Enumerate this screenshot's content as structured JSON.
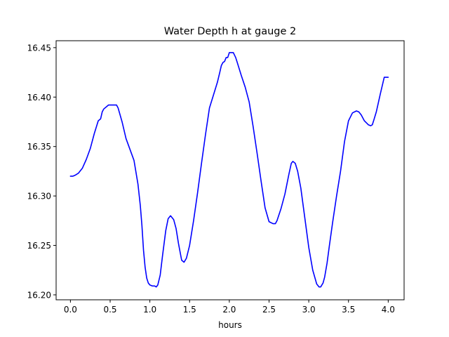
{
  "chart_data": {
    "type": "line",
    "title": "Water Depth h at gauge 2",
    "xlabel": "hours",
    "ylabel": "",
    "xlim": [
      -0.18,
      4.2
    ],
    "ylim": [
      16.195,
      16.457
    ],
    "xticks": [
      0.0,
      0.5,
      1.0,
      1.5,
      2.0,
      2.5,
      3.0,
      3.5,
      4.0
    ],
    "xtick_labels": [
      "0.0",
      "0.5",
      "1.0",
      "1.5",
      "2.0",
      "2.5",
      "3.0",
      "3.5",
      "4.0"
    ],
    "yticks": [
      16.2,
      16.25,
      16.3,
      16.35,
      16.4,
      16.45
    ],
    "ytick_labels": [
      "16.20",
      "16.25",
      "16.30",
      "16.35",
      "16.40",
      "16.45"
    ],
    "grid": false,
    "series": [
      {
        "color": "#0000ff",
        "x": [
          0.0,
          0.03,
          0.06,
          0.1,
          0.15,
          0.2,
          0.25,
          0.3,
          0.35,
          0.38,
          0.4,
          0.42,
          0.45,
          0.48,
          0.5,
          0.55,
          0.58,
          0.6,
          0.65,
          0.7,
          0.75,
          0.8,
          0.85,
          0.88,
          0.9,
          0.92,
          0.94,
          0.96,
          0.98,
          1.0,
          1.03,
          1.06,
          1.08,
          1.1,
          1.13,
          1.16,
          1.2,
          1.23,
          1.26,
          1.3,
          1.33,
          1.36,
          1.4,
          1.43,
          1.46,
          1.5,
          1.55,
          1.6,
          1.65,
          1.7,
          1.75,
          1.8,
          1.85,
          1.88,
          1.9,
          1.92,
          1.94,
          1.96,
          1.98,
          2.0,
          2.02,
          2.05,
          2.08,
          2.1,
          2.15,
          2.2,
          2.25,
          2.3,
          2.35,
          2.4,
          2.45,
          2.5,
          2.55,
          2.58,
          2.6,
          2.65,
          2.7,
          2.75,
          2.78,
          2.8,
          2.83,
          2.86,
          2.9,
          2.95,
          3.0,
          3.05,
          3.1,
          3.13,
          3.15,
          3.18,
          3.2,
          3.23,
          3.26,
          3.3,
          3.35,
          3.4,
          3.45,
          3.5,
          3.55,
          3.6,
          3.63,
          3.66,
          3.7,
          3.75,
          3.78,
          3.8,
          3.82,
          3.85,
          3.9,
          3.95,
          4.0
        ],
        "y": [
          16.32,
          16.32,
          16.321,
          16.323,
          16.328,
          16.337,
          16.348,
          16.363,
          16.376,
          16.378,
          16.385,
          16.388,
          16.39,
          16.392,
          16.392,
          16.392,
          16.392,
          16.389,
          16.375,
          16.358,
          16.347,
          16.336,
          16.312,
          16.29,
          16.27,
          16.245,
          16.228,
          16.217,
          16.212,
          16.21,
          16.209,
          16.209,
          16.208,
          16.21,
          16.22,
          16.24,
          16.265,
          16.277,
          16.28,
          16.276,
          16.267,
          16.252,
          16.235,
          16.233,
          16.237,
          16.25,
          16.275,
          16.303,
          16.333,
          16.362,
          16.389,
          16.402,
          16.415,
          16.425,
          16.432,
          16.435,
          16.436,
          16.44,
          16.44,
          16.445,
          16.445,
          16.445,
          16.44,
          16.435,
          16.422,
          16.41,
          16.395,
          16.37,
          16.343,
          16.315,
          16.288,
          16.274,
          16.272,
          16.272,
          16.275,
          16.287,
          16.302,
          16.322,
          16.333,
          16.335,
          16.333,
          16.325,
          16.308,
          16.278,
          16.248,
          16.225,
          16.211,
          16.208,
          16.208,
          16.212,
          16.218,
          16.232,
          16.25,
          16.273,
          16.3,
          16.325,
          16.355,
          16.376,
          16.384,
          16.386,
          16.385,
          16.382,
          16.376,
          16.372,
          16.371,
          16.372,
          16.377,
          16.385,
          16.403,
          16.42,
          16.42
        ]
      }
    ]
  }
}
